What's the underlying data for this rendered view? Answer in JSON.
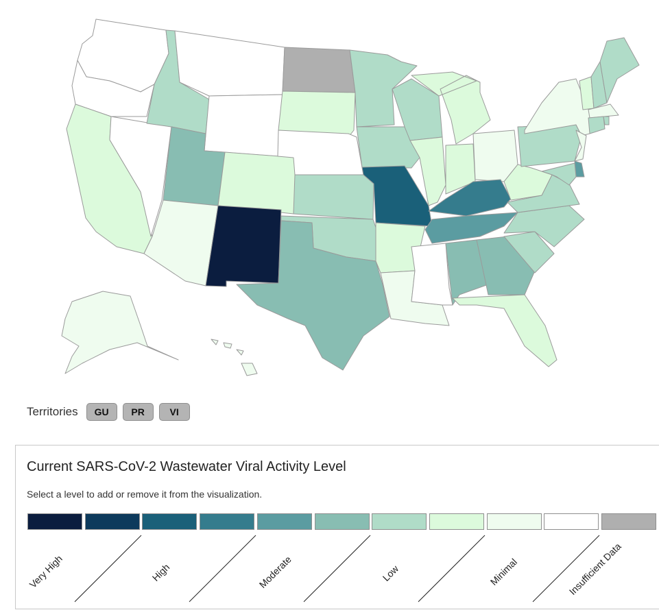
{
  "map": {
    "colors": {
      "very_high": "#0b1d3f",
      "high": "#1a6079",
      "moderate_high": "#357c8d",
      "moderate": "#5b9ca1",
      "low_high": "#88bdb2",
      "low": "#b0dcc8",
      "minimal_high": "#dcfadc",
      "minimal": "#effcef",
      "none": "#ffffff",
      "insufficient": "#afafaf",
      "border": "#9a9a9a"
    },
    "states": {
      "WA": "none",
      "OR": "none",
      "CA": "minimal_high",
      "NV": "none",
      "ID": "low",
      "MT": "none",
      "WY": "none",
      "UT": "low_high",
      "AZ": "minimal",
      "CO": "minimal_high",
      "NM": "very_high",
      "ND": "insufficient",
      "SD": "minimal_high",
      "NE": "none",
      "KS": "low",
      "OK": "low",
      "TX": "low_high",
      "MN": "low",
      "IA": "low",
      "MO": "high",
      "AR": "minimal_high",
      "LA": "minimal",
      "WI": "low",
      "IL": "minimal_high",
      "MI": "minimal_high",
      "IN": "minimal_high",
      "OH": "minimal",
      "KY": "moderate_high",
      "TN": "moderate",
      "MS": "none",
      "AL": "low_high",
      "GA": "low_high",
      "FL": "minimal_high",
      "SC": "low",
      "NC": "low",
      "VA": "low",
      "WV": "minimal_high",
      "PA": "low",
      "NY": "minimal",
      "VT": "minimal_high",
      "NH": "low",
      "ME": "low",
      "MA": "minimal",
      "CT": "low",
      "RI": "low",
      "NJ": "minimal",
      "DE": "moderate",
      "MD": "low",
      "AK": "minimal",
      "HI": "minimal"
    }
  },
  "territories": {
    "label": "Territories",
    "buttons": [
      "GU",
      "PR",
      "VI"
    ]
  },
  "legend": {
    "title": "Current SARS-CoV-2 Wastewater Viral Activity Level",
    "instruction": "Select a level to add or remove it from the visualization.",
    "swatches": [
      "#0b1d3f",
      "#0d3a5c",
      "#1a6079",
      "#357c8d",
      "#5b9ca1",
      "#88bdb2",
      "#b0dcc8",
      "#dcfadc",
      "#effcef",
      "#ffffff",
      "#afafaf"
    ],
    "levels": [
      "Very High",
      "High",
      "Moderate",
      "Low",
      "Minimal",
      "Insufficient Data"
    ]
  }
}
